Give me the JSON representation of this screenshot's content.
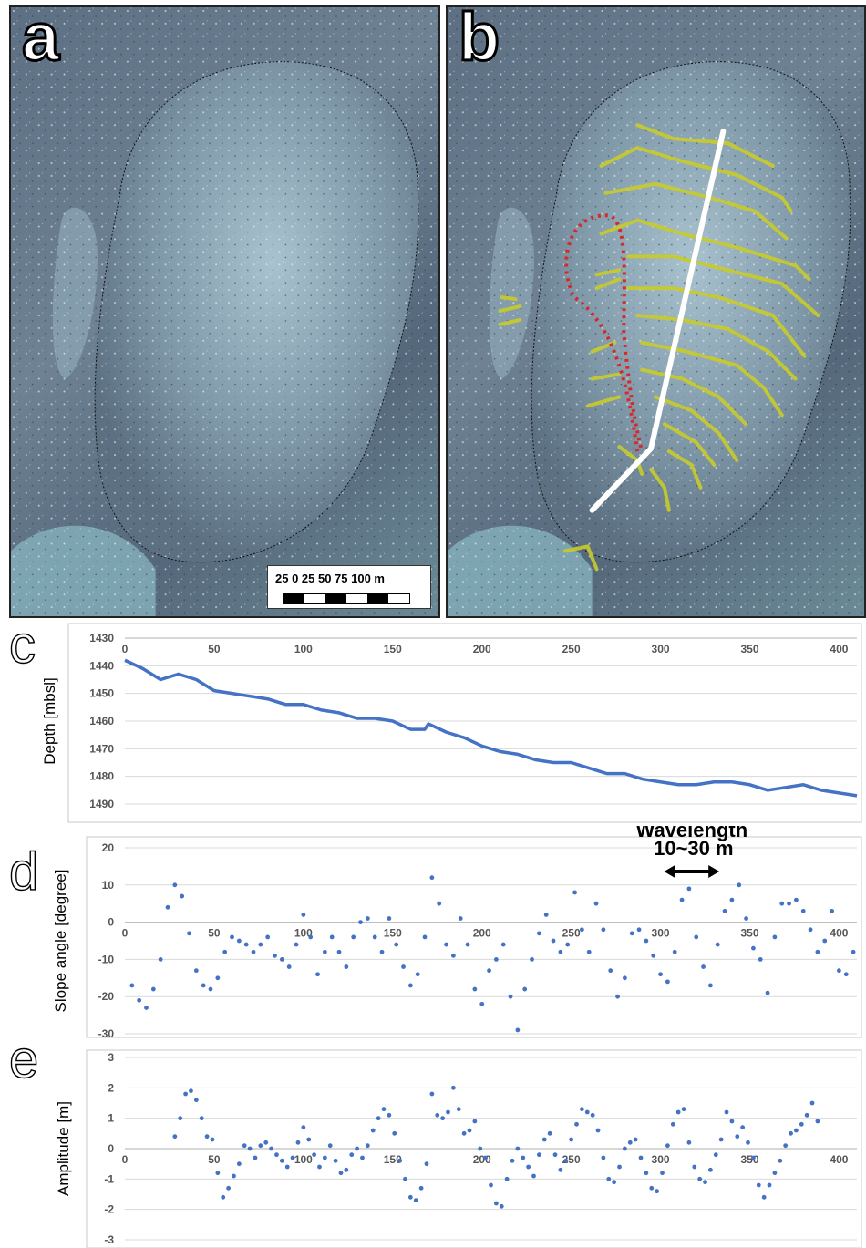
{
  "panels": {
    "a": {
      "label": "a"
    },
    "b": {
      "label": "b"
    }
  },
  "scalebar": {
    "label": "25   0  25  50  75  100 m"
  },
  "colors": {
    "ridge_lines": "#c8cc2a",
    "profile_line": "#ffffff",
    "dotted_outline": "#d42a2a",
    "series": "#4472c4",
    "grid": "#d9d9d9"
  },
  "chart_data": [
    {
      "id": "c",
      "panel_label": "c",
      "type": "line",
      "ylabel": "Depth [mbsl]",
      "xlim": [
        0,
        410
      ],
      "ylim": [
        1430,
        1490
      ],
      "y_inverted": true,
      "x_ticks": [
        0,
        50,
        100,
        150,
        200,
        250,
        300,
        350,
        400
      ],
      "y_ticks": [
        1430,
        1440,
        1450,
        1460,
        1470,
        1480,
        1490
      ],
      "series": [
        {
          "x": [
            0,
            10,
            20,
            30,
            40,
            50,
            60,
            70,
            80,
            90,
            100,
            110,
            120,
            130,
            140,
            150,
            160,
            168,
            170,
            180,
            190,
            200,
            210,
            220,
            230,
            240,
            250,
            260,
            270,
            280,
            290,
            300,
            310,
            320,
            330,
            340,
            350,
            360,
            370,
            380,
            390,
            400,
            410
          ],
          "y": [
            1438,
            1441,
            1445,
            1443,
            1445,
            1449,
            1450,
            1451,
            1452,
            1454,
            1454,
            1456,
            1457,
            1459,
            1459,
            1460,
            1463,
            1463,
            1461,
            1464,
            1466,
            1469,
            1471,
            1472,
            1474,
            1475,
            1475,
            1477,
            1479,
            1479,
            1481,
            1482,
            1483,
            1483,
            1482,
            1482,
            1483,
            1485,
            1484,
            1483,
            1485,
            1486,
            1487
          ]
        }
      ]
    },
    {
      "id": "d",
      "panel_label": "d",
      "type": "scatter",
      "ylabel": "Slope angle [degree]",
      "xlim": [
        0,
        410
      ],
      "ylim": [
        -30,
        20
      ],
      "x_ticks": [
        0,
        50,
        100,
        150,
        200,
        250,
        300,
        350,
        400
      ],
      "y_ticks": [
        -30,
        -20,
        -10,
        0,
        10,
        20
      ],
      "annotation": "Wavelength\n10~30 m",
      "annotation_arrow_x": [
        302,
        333
      ],
      "series": [
        {
          "x": [
            4,
            8,
            12,
            16,
            20,
            24,
            28,
            32,
            36,
            40,
            44,
            48,
            52,
            56,
            60,
            64,
            68,
            72,
            76,
            80,
            84,
            88,
            92,
            96,
            100,
            104,
            108,
            112,
            116,
            120,
            124,
            128,
            132,
            136,
            140,
            144,
            148,
            152,
            156,
            160,
            164,
            168,
            172,
            176,
            180,
            184,
            188,
            192,
            196,
            200,
            204,
            208,
            212,
            216,
            220,
            224,
            228,
            232,
            236,
            240,
            244,
            248,
            252,
            256,
            260,
            264,
            268,
            272,
            276,
            280,
            284,
            288,
            292,
            296,
            300,
            304,
            308,
            312,
            316,
            320,
            324,
            328,
            332,
            336,
            340,
            344,
            348,
            352,
            356,
            360,
            364,
            368,
            372,
            376,
            380,
            384,
            388,
            392,
            396,
            400,
            404,
            408
          ],
          "y": [
            -17,
            -21,
            -23,
            -18,
            -10,
            4,
            10,
            7,
            -3,
            -13,
            -17,
            -18,
            -15,
            -8,
            -4,
            -5,
            -6,
            -8,
            -6,
            -4,
            -9,
            -10,
            -12,
            -6,
            2,
            -4,
            -14,
            -8,
            -4,
            -8,
            -12,
            -4,
            0,
            1,
            -4,
            -8,
            1,
            -6,
            -12,
            -17,
            -14,
            -4,
            12,
            5,
            -6,
            -9,
            1,
            -6,
            -18,
            -22,
            -13,
            -10,
            -6,
            -20,
            -29,
            -18,
            -10,
            -3,
            2,
            -5,
            -8,
            -6,
            8,
            -2,
            -8,
            5,
            -2,
            -13,
            -20,
            -15,
            -3,
            -2,
            -5,
            -9,
            -14,
            -16,
            -8,
            6,
            9,
            -4,
            -12,
            -17,
            -6,
            3,
            6,
            10,
            1,
            -7,
            -10,
            -19,
            -4,
            5,
            5,
            6,
            3,
            -2,
            -8,
            -5,
            3,
            -13,
            -14,
            -8
          ]
        }
      ]
    },
    {
      "id": "e",
      "panel_label": "e",
      "type": "scatter",
      "ylabel": "Amplitude [m]",
      "xlim": [
        0,
        410
      ],
      "ylim": [
        -3,
        3
      ],
      "x_ticks": [
        0,
        50,
        100,
        150,
        200,
        250,
        300,
        350,
        400
      ],
      "y_ticks": [
        -3,
        -2,
        -1,
        0,
        1,
        2,
        3
      ],
      "series": [
        {
          "x": [
            28,
            31,
            34,
            37,
            40,
            43,
            46,
            49,
            52,
            55,
            58,
            61,
            64,
            67,
            70,
            73,
            76,
            79,
            82,
            85,
            88,
            91,
            94,
            97,
            100,
            103,
            106,
            109,
            112,
            115,
            118,
            121,
            124,
            127,
            130,
            133,
            136,
            139,
            142,
            145,
            148,
            151,
            154,
            157,
            160,
            163,
            166,
            169,
            172,
            175,
            178,
            181,
            184,
            187,
            190,
            193,
            196,
            199,
            202,
            205,
            208,
            211,
            214,
            217,
            220,
            223,
            226,
            229,
            232,
            235,
            238,
            241,
            244,
            247,
            250,
            253,
            256,
            259,
            262,
            265,
            268,
            271,
            274,
            277,
            280,
            283,
            286,
            289,
            292,
            295,
            298,
            301,
            304,
            307,
            310,
            313,
            316,
            319,
            322,
            325,
            328,
            331,
            334,
            337,
            340,
            343,
            346,
            349,
            352,
            355,
            358,
            361,
            364,
            367,
            370,
            373,
            376,
            379,
            382,
            385,
            388
          ],
          "y": [
            0.4,
            1.0,
            1.8,
            1.9,
            1.6,
            1.0,
            0.4,
            0.3,
            -0.8,
            -1.6,
            -1.3,
            -0.9,
            -0.5,
            0.1,
            0.0,
            -0.3,
            0.1,
            0.2,
            0.0,
            -0.2,
            -0.4,
            -0.6,
            -0.3,
            0.2,
            0.7,
            0.3,
            -0.2,
            -0.6,
            -0.3,
            0.1,
            -0.4,
            -0.8,
            -0.7,
            -0.2,
            0.0,
            -0.3,
            0.1,
            0.6,
            1.0,
            1.3,
            1.1,
            0.5,
            -0.4,
            -1.0,
            -1.6,
            -1.7,
            -1.3,
            -0.5,
            1.8,
            1.1,
            1.0,
            1.2,
            2.0,
            1.3,
            0.5,
            0.6,
            0.9,
            0.0,
            -0.3,
            -1.2,
            -1.8,
            -1.9,
            -1.0,
            -0.4,
            0.0,
            -0.3,
            -0.6,
            -0.9,
            -0.2,
            0.3,
            0.5,
            -0.2,
            -0.7,
            -0.4,
            0.3,
            0.8,
            1.3,
            1.2,
            1.1,
            0.6,
            -0.3,
            -1.0,
            -1.1,
            -0.6,
            0.0,
            0.2,
            0.3,
            -0.3,
            -0.8,
            -1.3,
            -1.4,
            -0.8,
            0.1,
            0.8,
            1.2,
            1.3,
            0.2,
            -0.6,
            -1.0,
            -1.1,
            -0.7,
            -0.2,
            0.3,
            1.2,
            0.9,
            0.4,
            0.7,
            0.2,
            -0.3,
            -1.2,
            -1.6,
            -1.2,
            -0.8,
            -0.4,
            0.1,
            0.5,
            0.6,
            0.8,
            1.1,
            1.5,
            0.9
          ]
        }
      ]
    }
  ]
}
